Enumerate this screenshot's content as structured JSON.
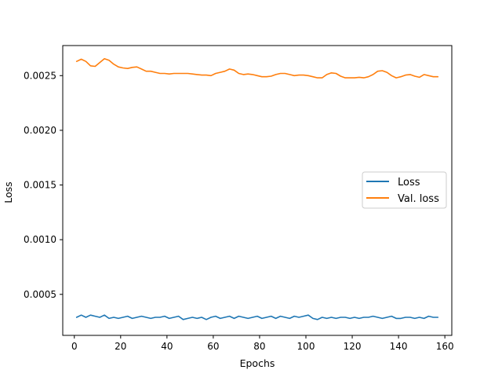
{
  "chart_data": {
    "type": "line",
    "title": "",
    "xlabel": "Epochs",
    "ylabel": "Loss",
    "xlim": [
      -5,
      163
    ],
    "ylim": [
      0.000125,
      0.002775
    ],
    "xticks": [
      0,
      20,
      40,
      60,
      80,
      100,
      120,
      140,
      160
    ],
    "yticks": [
      0.0005,
      0.001,
      0.0015,
      0.002,
      0.0025
    ],
    "ytick_labels": [
      "0.0005",
      "0.0010",
      "0.0015",
      "0.0020",
      "0.0025"
    ],
    "grid": false,
    "legend_position": "center-right",
    "series": [
      {
        "name": "Loss",
        "color": "#1f77b4",
        "x": [
          1,
          3,
          5,
          7,
          9,
          11,
          13,
          15,
          17,
          19,
          21,
          23,
          25,
          27,
          29,
          31,
          33,
          35,
          37,
          39,
          41,
          43,
          45,
          47,
          49,
          51,
          53,
          55,
          57,
          59,
          61,
          63,
          65,
          67,
          69,
          71,
          73,
          75,
          77,
          79,
          81,
          83,
          85,
          87,
          89,
          91,
          93,
          95,
          97,
          99,
          101,
          103,
          105,
          107,
          109,
          111,
          113,
          115,
          117,
          119,
          121,
          123,
          125,
          127,
          129,
          131,
          133,
          135,
          137,
          139,
          141,
          143,
          145,
          147,
          149,
          151,
          153,
          155,
          157
        ],
        "values": [
          0.00029,
          0.00031,
          0.00029,
          0.00031,
          0.0003,
          0.00029,
          0.00031,
          0.00028,
          0.00029,
          0.00028,
          0.00029,
          0.0003,
          0.00028,
          0.00029,
          0.0003,
          0.00029,
          0.00028,
          0.00029,
          0.00029,
          0.0003,
          0.00028,
          0.00029,
          0.0003,
          0.00027,
          0.00028,
          0.00029,
          0.00028,
          0.00029,
          0.00027,
          0.00029,
          0.0003,
          0.00028,
          0.00029,
          0.0003,
          0.00028,
          0.0003,
          0.00029,
          0.00028,
          0.00029,
          0.0003,
          0.00028,
          0.00029,
          0.0003,
          0.00028,
          0.0003,
          0.00029,
          0.00028,
          0.0003,
          0.00029,
          0.0003,
          0.00031,
          0.00028,
          0.00027,
          0.00029,
          0.00028,
          0.00029,
          0.00028,
          0.00029,
          0.00029,
          0.00028,
          0.00029,
          0.00028,
          0.00029,
          0.00029,
          0.0003,
          0.00029,
          0.00028,
          0.00029,
          0.0003,
          0.00028,
          0.00028,
          0.00029,
          0.00029,
          0.00028,
          0.00029,
          0.00028,
          0.0003,
          0.00029,
          0.00029
        ]
      },
      {
        "name": "Val. loss",
        "color": "#ff7f0e",
        "x": [
          1,
          3,
          5,
          7,
          9,
          11,
          13,
          15,
          17,
          19,
          21,
          23,
          25,
          27,
          29,
          31,
          33,
          35,
          37,
          39,
          41,
          43,
          45,
          47,
          49,
          51,
          53,
          55,
          57,
          59,
          61,
          63,
          65,
          67,
          69,
          71,
          73,
          75,
          77,
          79,
          81,
          83,
          85,
          87,
          89,
          91,
          93,
          95,
          97,
          99,
          101,
          103,
          105,
          107,
          109,
          111,
          113,
          115,
          117,
          119,
          121,
          123,
          125,
          127,
          129,
          131,
          133,
          135,
          137,
          139,
          141,
          143,
          145,
          147,
          149,
          151,
          153,
          155,
          157
        ],
        "values": [
          0.00263,
          0.00265,
          0.00263,
          0.00259,
          0.002585,
          0.00262,
          0.002655,
          0.00264,
          0.002605,
          0.00258,
          0.00257,
          0.002565,
          0.002575,
          0.00258,
          0.00256,
          0.00254,
          0.00254,
          0.00253,
          0.00252,
          0.00252,
          0.002515,
          0.00252,
          0.00252,
          0.00252,
          0.00252,
          0.002515,
          0.00251,
          0.002505,
          0.002505,
          0.0025,
          0.00252,
          0.00253,
          0.00254,
          0.00256,
          0.00255,
          0.00252,
          0.00251,
          0.002515,
          0.00251,
          0.0025,
          0.00249,
          0.00249,
          0.002495,
          0.00251,
          0.00252,
          0.00252,
          0.00251,
          0.0025,
          0.002505,
          0.002505,
          0.0025,
          0.00249,
          0.00248,
          0.00248,
          0.00251,
          0.002525,
          0.00252,
          0.002495,
          0.00248,
          0.00248,
          0.00248,
          0.002485,
          0.00248,
          0.00249,
          0.00251,
          0.00254,
          0.002545,
          0.00253,
          0.0025,
          0.00248,
          0.00249,
          0.002505,
          0.00251,
          0.002495,
          0.002485,
          0.00251,
          0.0025,
          0.00249,
          0.00249
        ]
      }
    ]
  }
}
